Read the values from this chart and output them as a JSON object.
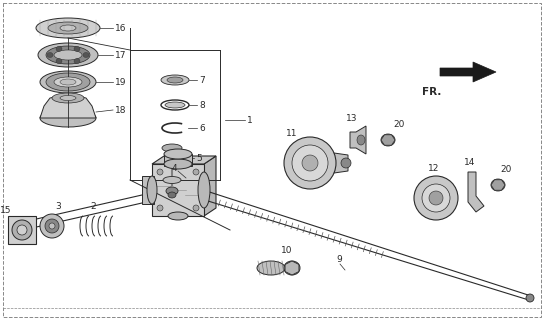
{
  "bg_color": "#ffffff",
  "line_color": "#2a2a2a",
  "gray_fill": "#c8c8c8",
  "dark_fill": "#888888",
  "mid_fill": "#aaaaaa",
  "light_fill": "#e0e0e0"
}
